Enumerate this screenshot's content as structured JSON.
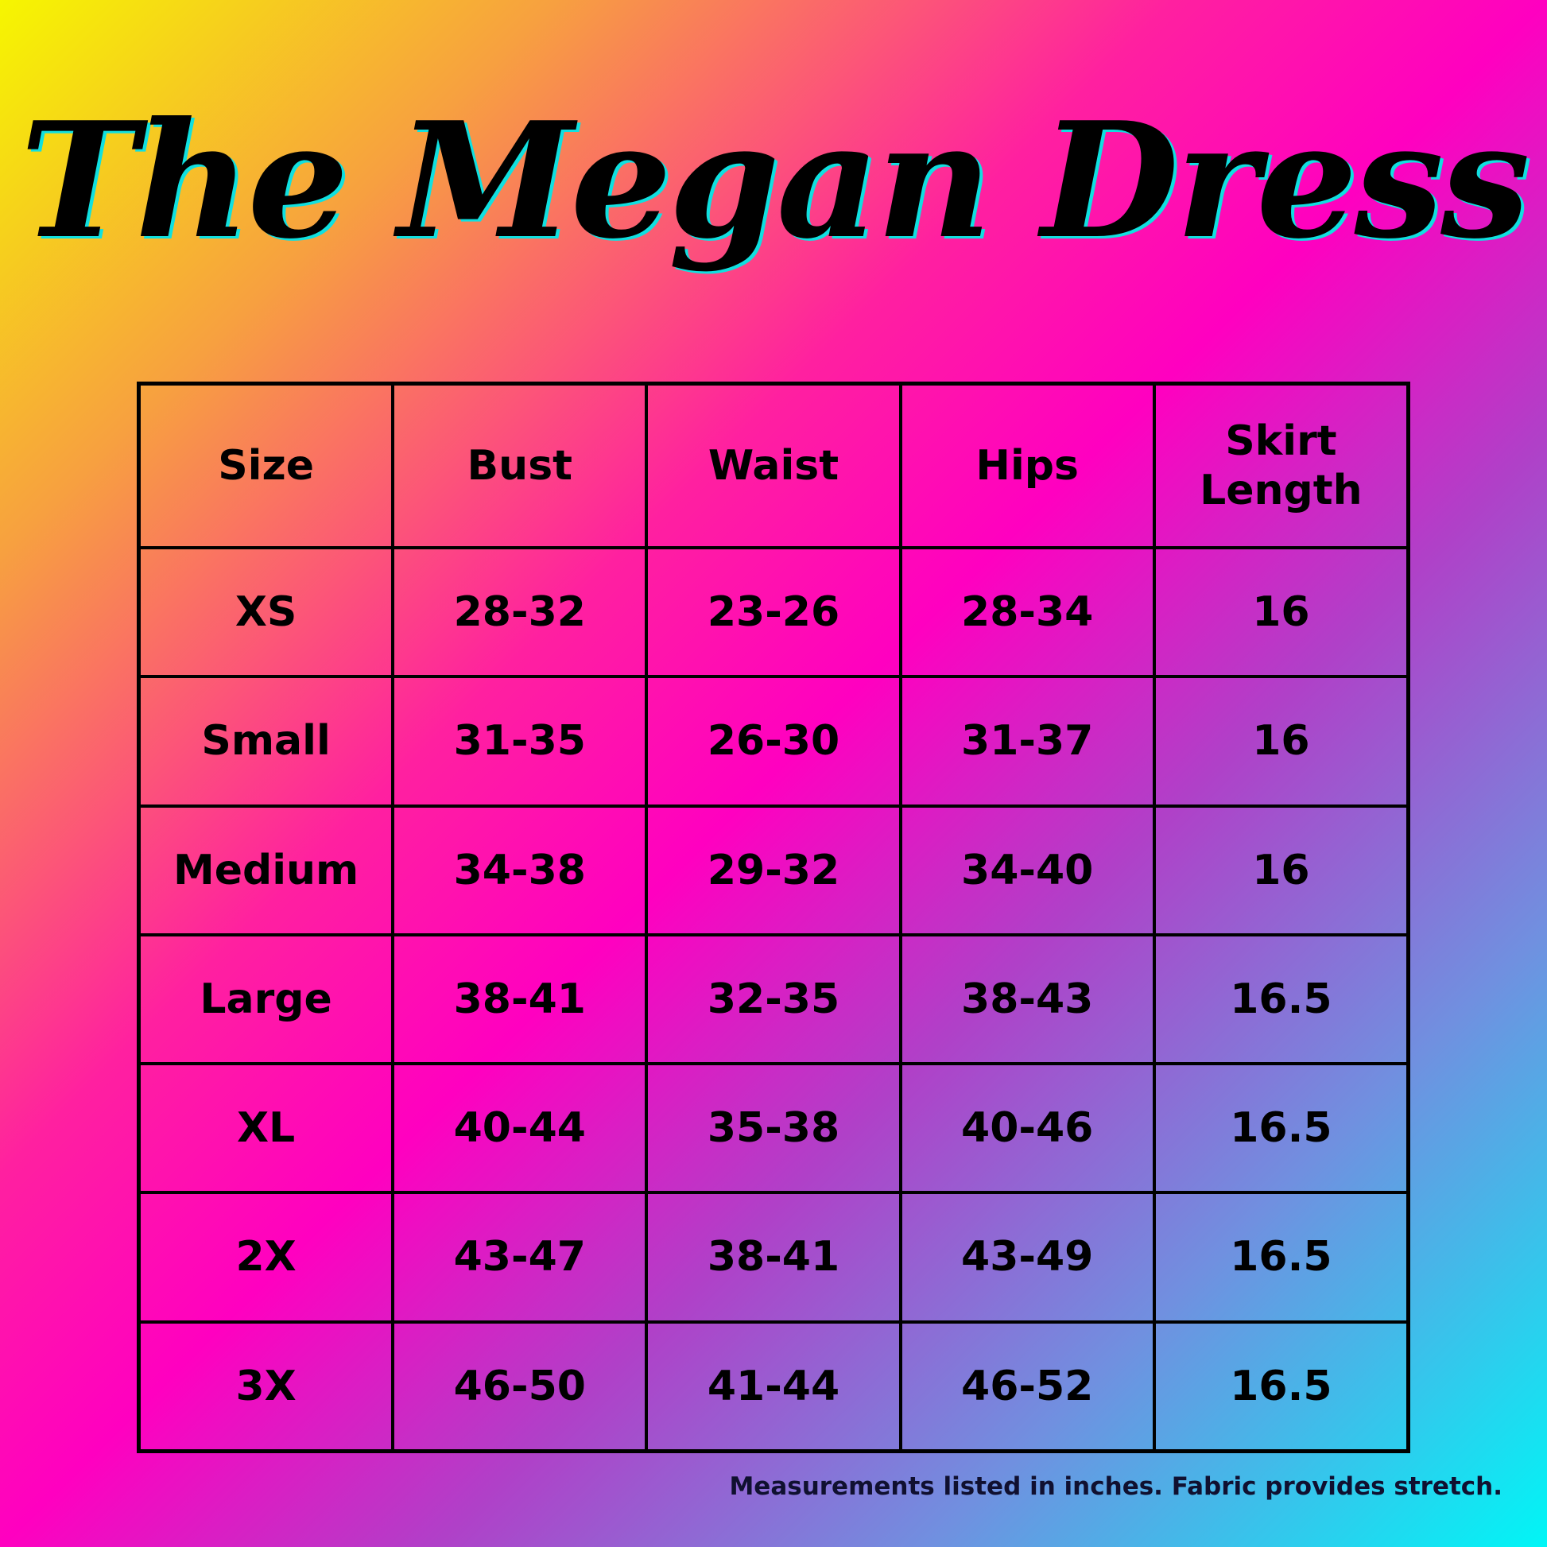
{
  "header": {
    "title": "The Megan Dress"
  },
  "table": {
    "columns": [
      "Size",
      "Bust",
      "Waist",
      "Hips",
      "Skirt Length"
    ],
    "rows": [
      [
        "XS",
        "28-32",
        "23-26",
        "28-34",
        "16"
      ],
      [
        "Small",
        "31-35",
        "26-30",
        "31-37",
        "16"
      ],
      [
        "Medium",
        "34-38",
        "29-32",
        "34-40",
        "16"
      ],
      [
        "Large",
        "38-41",
        "32-35",
        "38-43",
        "16.5"
      ],
      [
        "XL",
        "40-44",
        "35-38",
        "40-46",
        "16.5"
      ],
      [
        "2X",
        "43-47",
        "38-41",
        "43-49",
        "16.5"
      ],
      [
        "3X",
        "46-50",
        "41-44",
        "46-52",
        "16.5"
      ]
    ]
  },
  "footer": {
    "note": "Measurements listed in inches. Fabric provides stretch."
  }
}
